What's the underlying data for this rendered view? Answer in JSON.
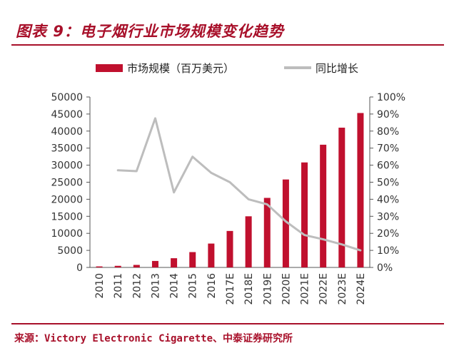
{
  "header": {
    "title": "图表 9：电子烟行业市场规模变化趋势",
    "source": "来源：Victory Electronic Cigarette、中泰证券研究所"
  },
  "colors": {
    "accent": "#a8102a",
    "bar": "#c0102e",
    "line": "#bdbdbd"
  },
  "chart_data": {
    "type": "bar",
    "categories": [
      "2010",
      "2011",
      "2012",
      "2013",
      "2014",
      "2015",
      "2016",
      "2017E",
      "2018E",
      "2019E",
      "2020E",
      "2021E",
      "2022E",
      "2023E",
      "2024E"
    ],
    "series": [
      {
        "name": "市场规模（百万美元）",
        "type": "bar",
        "axis": "left",
        "values": [
          300,
          470,
          740,
          1900,
          2700,
          4500,
          7000,
          10700,
          15000,
          20400,
          25800,
          30800,
          36000,
          41000,
          45300
        ]
      },
      {
        "name": "同比增长",
        "type": "line",
        "axis": "right",
        "values": [
          null,
          0.57,
          0.565,
          0.875,
          0.44,
          0.65,
          0.555,
          0.5,
          0.4,
          0.37,
          0.27,
          0.19,
          0.165,
          0.135,
          0.1
        ]
      }
    ],
    "yleft": {
      "lim": [
        0,
        50000
      ],
      "ticks": [
        "0",
        "5000",
        "10000",
        "15000",
        "20000",
        "25000",
        "30000",
        "35000",
        "40000",
        "45000",
        "50000"
      ]
    },
    "yright": {
      "lim": [
        0,
        1
      ],
      "ticks": [
        "0%",
        "10%",
        "20%",
        "30%",
        "40%",
        "50%",
        "60%",
        "70%",
        "80%",
        "90%",
        "100%"
      ]
    },
    "legend_position": "top",
    "grid": false
  }
}
